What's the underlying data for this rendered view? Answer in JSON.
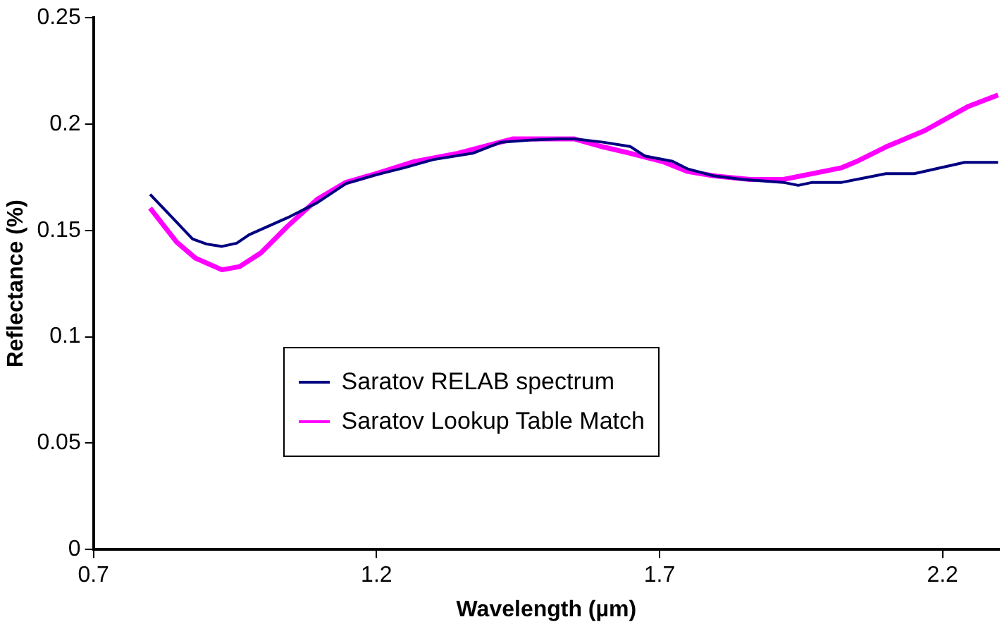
{
  "chart_data": {
    "type": "line",
    "xlabel": "Wavelength (µm)",
    "ylabel": "Reflectance (%)",
    "xlim": [
      0.7,
      2.3
    ],
    "xticks": [
      0.7,
      1.2,
      1.7,
      2.2
    ],
    "ylim": [
      0,
      0.25
    ],
    "yticks": [
      0,
      0.05,
      0.1,
      0.15,
      0.2,
      0.25
    ],
    "grid": false,
    "legend": "bottom",
    "marker": "none",
    "line_style": "solid",
    "series": [
      {
        "name": "Saratov RELAB spectrum",
        "color": "#000080",
        "x": [
          0.8,
          0.825,
          0.875,
          0.9,
          0.927,
          0.953,
          0.975,
          1.043,
          1.095,
          1.146,
          1.197,
          1.249,
          1.3,
          1.37,
          1.42,
          1.473,
          1.525,
          1.55,
          1.6,
          1.648,
          1.674,
          1.723,
          1.749,
          1.795,
          1.847,
          1.919,
          1.945,
          1.97,
          2.022,
          2.1,
          2.15,
          2.239,
          2.298
        ],
        "values": [
          0.167,
          0.16,
          0.146,
          0.1436,
          0.1425,
          0.144,
          0.148,
          0.156,
          0.163,
          0.172,
          0.176,
          0.1795,
          0.1833,
          0.1863,
          0.1915,
          0.1925,
          0.193,
          0.193,
          0.1915,
          0.1895,
          0.185,
          0.1825,
          0.179,
          0.1757,
          0.174,
          0.1726,
          0.1712,
          0.1726,
          0.1726,
          0.1767,
          0.1767,
          0.182,
          0.182
        ]
      },
      {
        "name": "Saratov Lookup Table Match",
        "color": "#ff00ff",
        "x": [
          0.8,
          0.847,
          0.88,
          0.927,
          0.958,
          0.996,
          1.043,
          1.095,
          1.146,
          1.197,
          1.267,
          1.344,
          1.44,
          1.525,
          1.55,
          1.6,
          1.648,
          1.705,
          1.749,
          1.795,
          1.86,
          1.919,
          2.022,
          2.048,
          2.1,
          2.169,
          2.246,
          2.298
        ],
        "values": [
          0.1605,
          0.1445,
          0.137,
          0.1315,
          0.133,
          0.1395,
          0.152,
          0.1646,
          0.1726,
          0.1765,
          0.1824,
          0.1863,
          0.193,
          0.193,
          0.193,
          0.1893,
          0.1863,
          0.1824,
          0.1778,
          0.1757,
          0.174,
          0.174,
          0.1795,
          0.1824,
          0.1893,
          0.197,
          0.2084,
          0.2137
        ]
      }
    ]
  }
}
